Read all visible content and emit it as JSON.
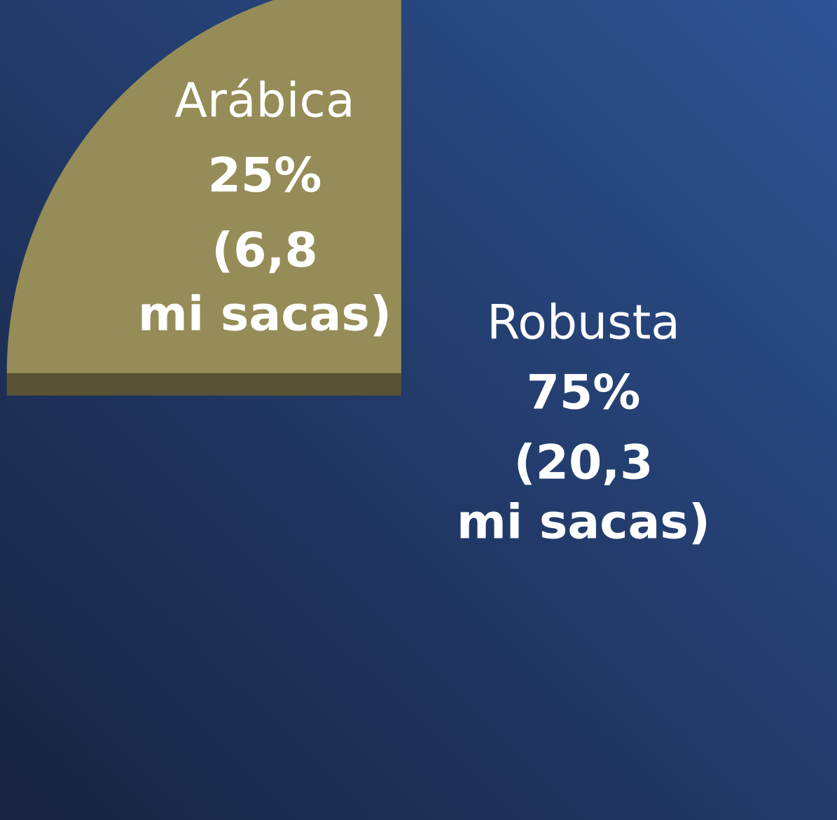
{
  "chart_data": {
    "type": "pie",
    "categories": [
      "Arábica",
      "Robusta"
    ],
    "values": [
      25,
      75
    ],
    "value_labels": [
      "25%",
      "75%"
    ],
    "detail_labels": [
      [
        "(6,8",
        "mi sacas)"
      ],
      [
        "(20,3",
        "mi sacas)"
      ]
    ],
    "colors": [
      "#968c58",
      "#4a452d"
    ]
  }
}
